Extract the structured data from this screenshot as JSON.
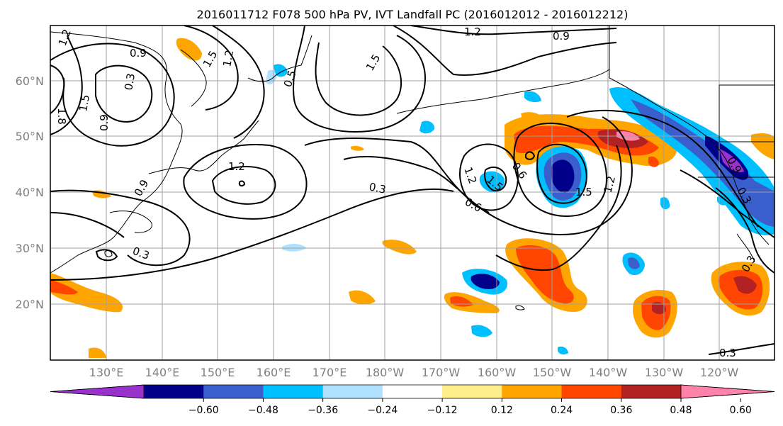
{
  "title": "2016011712 F078 500 hPa PV, IVT Landfall PC (2016012012 - 2016012212)",
  "lat_labels": [
    "60°N",
    "50°N",
    "40°N",
    "30°N",
    "20°N"
  ],
  "lon_labels": [
    "130°E",
    "140°E",
    "150°E",
    "160°E",
    "170°E",
    "180°W",
    "170°W",
    "160°W",
    "150°W",
    "140°W",
    "130°W",
    "120°W"
  ],
  "contour_labels": [
    "1.2",
    "0.9",
    "1.5",
    "1.2",
    "1.8",
    "1.5",
    "0.9",
    "0.3",
    "0.5",
    "1.5",
    "1.2",
    "0.9",
    "1.2",
    "0.3",
    "0.6",
    "1.2",
    "1.5",
    "0.6",
    "1.5",
    "1.2",
    "0.9",
    "0.3",
    "0.9",
    "0.3",
    "0.3",
    "0.3"
  ],
  "colorbar": {
    "ticks": [
      "−0.60",
      "−0.48",
      "−0.36",
      "−0.24",
      "−0.12",
      "0.12",
      "0.24",
      "0.36",
      "0.48",
      "0.60"
    ],
    "colors": [
      "#9932cc",
      "#00008b",
      "#3a5fcd",
      "#00bfff",
      "#b0e2ff",
      "#ffffff",
      "#ffec8b",
      "#ffa500",
      "#ff4500",
      "#b22222",
      "#ff82ab"
    ]
  },
  "map": {
    "lon_range": [
      "120°E",
      "115°W"
    ],
    "lat_range": [
      "10°N",
      "70°N"
    ],
    "layers": [
      "500 hPa PV contours (black)",
      "IVT landfall PC shading"
    ]
  }
}
